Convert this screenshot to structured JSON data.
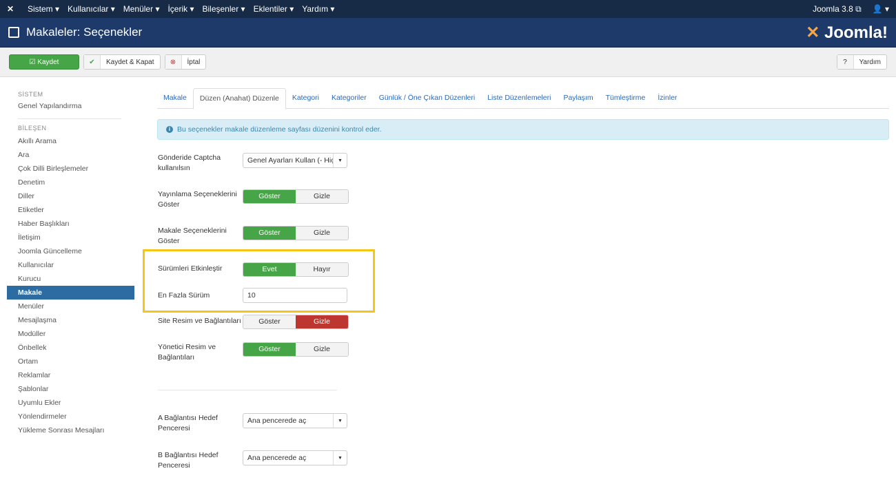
{
  "topbar": {
    "menus": [
      "Sistem ▾",
      "Kullanıcılar ▾",
      "Menüler ▾",
      "İçerik ▾",
      "Bileşenler ▾",
      "Eklentiler ▾",
      "Yardım ▾"
    ],
    "version": "Joomla 3.8 ⧉",
    "user": "👤 ▾"
  },
  "header": {
    "title": "Makaleler: Seçenekler",
    "brand": "Joomla!"
  },
  "toolbar": {
    "save": "Kaydet",
    "save_close": "Kaydet & Kapat",
    "cancel": "İptal",
    "help": "Yardım"
  },
  "sidebar": {
    "system_heading": "SİSTEM",
    "system_item": "Genel Yapılandırma",
    "component_heading": "BİLEŞEN",
    "items": [
      "Akıllı Arama",
      "Ara",
      "Çok Dilli Birleşlemeler",
      "Denetim",
      "Diller",
      "Etiketler",
      "Haber Başlıkları",
      "İletişim",
      "Joomla Güncelleme",
      "Kullanıcılar",
      "Kurucu",
      "Makale",
      "Menüler",
      "Mesajlaşma",
      "Modüller",
      "Önbellek",
      "Ortam",
      "Reklamlar",
      "Şablonlar",
      "Uyumlu Ekler",
      "Yönlendirmeler",
      "Yükleme Sonrası Mesajları"
    ],
    "active": "Makale"
  },
  "tabs": [
    "Makale",
    "Düzen (Anahat) Düzenle",
    "Kategori",
    "Kategoriler",
    "Günlük / Öne Çıkan Düzenleri",
    "Liste Düzenlemeleri",
    "Paylaşım",
    "Tümleştirme",
    "İzinler"
  ],
  "info": "Bu seçenekler makale düzenleme sayfası düzenini kontrol eder.",
  "form": {
    "captcha": {
      "label": "Gönderide Captcha kullanılsın",
      "value": "Genel Ayarları Kullan (- Hiçbi..."
    },
    "publishing": {
      "label": "Yayınlama Seçeneklerini Göster",
      "on": "Göster",
      "off": "Gizle",
      "selected": "on"
    },
    "article_opts": {
      "label": "Makale Seçeneklerini Göster",
      "on": "Göster",
      "off": "Gizle",
      "selected": "on"
    },
    "versions": {
      "label": "Sürümleri Etkinleştir",
      "on": "Evet",
      "off": "Hayır",
      "selected": "on"
    },
    "max_versions": {
      "label": "En Fazla Sürüm",
      "value": "10"
    },
    "site_images": {
      "label": "Site Resim ve Bağlantıları",
      "on": "Göster",
      "off": "Gizle",
      "selected": "off"
    },
    "admin_images": {
      "label": "Yönetici Resim ve Bağlantıları",
      "on": "Göster",
      "off": "Gizle",
      "selected": "on"
    },
    "link_a": {
      "label": "A Bağlantısı Hedef Penceresi",
      "value": "Ana pencerede aç"
    },
    "link_b": {
      "label": "B Bağlantısı Hedef Penceresi",
      "value": "Ana pencerede aç"
    }
  },
  "colors": {
    "highlight": "#f5c518",
    "green": "#46a546",
    "red": "#bd362f"
  }
}
